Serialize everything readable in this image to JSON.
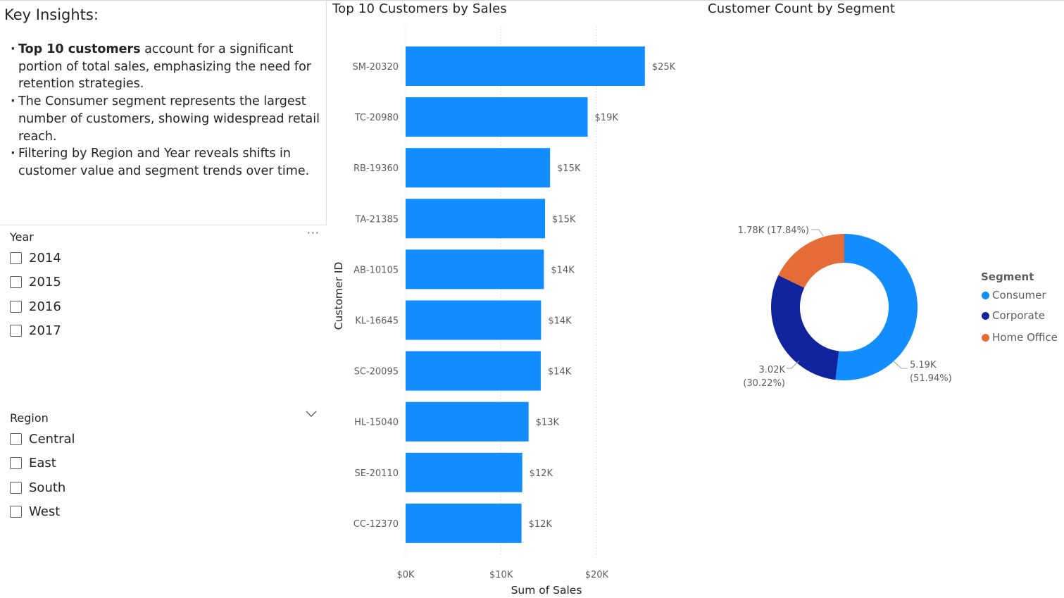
{
  "insights": {
    "title": "Key Insights:",
    "items": [
      {
        "bold": "Top 10 customers",
        "text": " account for a significant portion of total sales, emphasizing the need for retention strategies."
      },
      {
        "bold": "",
        "text": "The Consumer segment represents the largest number of customers, showing widespread retail reach."
      },
      {
        "bold": "",
        "text": "Filtering by Region and Year reveals shifts in customer value and segment trends over time."
      }
    ]
  },
  "year_slicer": {
    "title": "Year",
    "more_label": "···",
    "options": [
      "2014",
      "2015",
      "2016",
      "2017"
    ]
  },
  "region_slicer": {
    "title": "Region",
    "options": [
      "Central",
      "East",
      "South",
      "West"
    ]
  },
  "colors": {
    "bar": "#118dff",
    "consumer": "#118dff",
    "corporate": "#12239e",
    "home_office": "#e66c37"
  },
  "chart_data": [
    {
      "type": "bar",
      "orientation": "horizontal",
      "title": "Top 10 Customers by Sales",
      "xlabel": "Sum of Sales",
      "ylabel": "Customer ID",
      "categories": [
        "SM-20320",
        "TC-20980",
        "RB-19360",
        "TA-21385",
        "AB-10105",
        "KL-16645",
        "SC-20095",
        "HL-15040",
        "SE-20110",
        "CC-12370"
      ],
      "values": [
        25043,
        19052,
        15117,
        14595,
        14474,
        14175,
        14142,
        12873,
        12209,
        12129
      ],
      "data_labels": [
        "$25K",
        "$19K",
        "$15K",
        "$15K",
        "$14K",
        "$14K",
        "$14K",
        "$13K",
        "$12K",
        "$12K"
      ],
      "x_ticks": [
        "$0K",
        "$10K",
        "$20K"
      ],
      "xlim": [
        0,
        27000
      ],
      "grid": true
    },
    {
      "type": "pie",
      "variant": "donut",
      "title": "Customer Count by Segment",
      "legend_title": "Segment",
      "legend_position": "right",
      "categories": [
        "Consumer",
        "Corporate",
        "Home Office"
      ],
      "values": [
        5191,
        3020,
        1783
      ],
      "labels": [
        "5.19K",
        "3.02K",
        "1.78K"
      ],
      "percent_labels": [
        "(51.94%)",
        "(30.22%)",
        "(17.84%)"
      ]
    }
  ]
}
